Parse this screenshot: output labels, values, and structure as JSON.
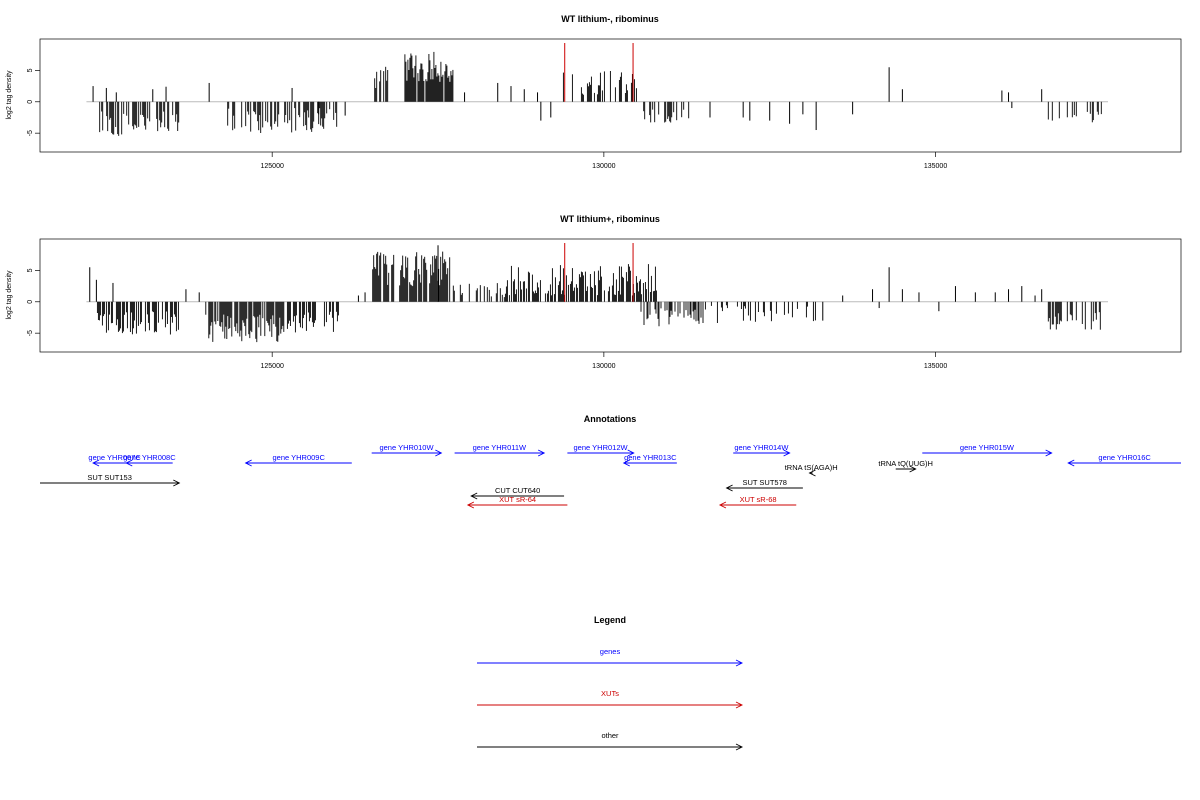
{
  "chart_data": [
    {
      "type": "bar",
      "title": "WT lithium-, ribominus",
      "ylabel": "log2 tag density",
      "xlim": [
        121500,
        138700
      ],
      "ylim": [
        -8,
        10
      ],
      "x_ticks": [
        125000,
        130000,
        135000
      ],
      "x_tick_labels": [
        "125000",
        "130000",
        "135000"
      ],
      "y_ticks": [
        -5,
        0,
        5
      ],
      "y_tick_labels": [
        "-5",
        "0",
        "5"
      ],
      "marker_color": "#cc0000",
      "markers": [
        129410,
        130440
      ],
      "segments": [
        {
          "from": 122400,
          "to": 123600,
          "sign": -1,
          "lo": 1.5,
          "hi": 5.5,
          "density": 0.45
        },
        {
          "from": 124300,
          "to": 126000,
          "sign": -1,
          "lo": 1.0,
          "hi": 5.0,
          "density": 0.5
        },
        {
          "from": 126500,
          "to": 126750,
          "sign": 1,
          "lo": 2.0,
          "hi": 6.0,
          "density": 0.55
        },
        {
          "from": 127000,
          "to": 127750,
          "sign": 1,
          "lo": 3.0,
          "hi": 8.0,
          "density": 0.95
        },
        {
          "from": 129300,
          "to": 130500,
          "sign": 1,
          "lo": 1.0,
          "hi": 5.0,
          "density": 0.35
        },
        {
          "from": 130600,
          "to": 131400,
          "sign": -1,
          "lo": 1.0,
          "hi": 3.5,
          "density": 0.4
        },
        {
          "from": 136700,
          "to": 137500,
          "sign": -1,
          "lo": 1.0,
          "hi": 3.5,
          "density": 0.25
        }
      ],
      "bars": [
        {
          "x": 122300,
          "y": 2.5
        },
        {
          "x": 122500,
          "y": 2.2
        },
        {
          "x": 122650,
          "y": 1.5
        },
        {
          "x": 123200,
          "y": 2.0
        },
        {
          "x": 123400,
          "y": 2.4
        },
        {
          "x": 124050,
          "y": 3.0
        },
        {
          "x": 125300,
          "y": 2.2
        },
        {
          "x": 125700,
          "y": -2.0
        },
        {
          "x": 126100,
          "y": -2.2
        },
        {
          "x": 127900,
          "y": 1.5
        },
        {
          "x": 128400,
          "y": 3.0
        },
        {
          "x": 128600,
          "y": 2.5
        },
        {
          "x": 128800,
          "y": 2.0
        },
        {
          "x": 129000,
          "y": 1.5
        },
        {
          "x": 129050,
          "y": -3.0
        },
        {
          "x": 129200,
          "y": -2.5
        },
        {
          "x": 131600,
          "y": -2.5
        },
        {
          "x": 132100,
          "y": -2.5
        },
        {
          "x": 132200,
          "y": -3.0
        },
        {
          "x": 132500,
          "y": -3.0
        },
        {
          "x": 132800,
          "y": -3.5
        },
        {
          "x": 133000,
          "y": -2.0
        },
        {
          "x": 133200,
          "y": -4.5
        },
        {
          "x": 133750,
          "y": -2.0
        },
        {
          "x": 134300,
          "y": 5.5
        },
        {
          "x": 134500,
          "y": 2.0
        },
        {
          "x": 136000,
          "y": 1.8
        },
        {
          "x": 136100,
          "y": 1.5
        },
        {
          "x": 136150,
          "y": -1.0
        },
        {
          "x": 136600,
          "y": 2.0
        }
      ]
    },
    {
      "type": "bar",
      "title": "WT lithium+, ribominus",
      "ylabel": "log2 tag density",
      "xlim": [
        121500,
        138700
      ],
      "ylim": [
        -8,
        10
      ],
      "x_ticks": [
        125000,
        130000,
        135000
      ],
      "x_tick_labels": [
        "125000",
        "130000",
        "135000"
      ],
      "y_ticks": [
        -5,
        0,
        5
      ],
      "y_tick_labels": [
        "-5",
        "0",
        "5"
      ],
      "marker_color": "#cc0000",
      "markers": [
        129410,
        130440
      ],
      "segments": [
        {
          "from": 122350,
          "to": 123600,
          "sign": -1,
          "lo": 1.5,
          "hi": 5.5,
          "density": 0.6
        },
        {
          "from": 124000,
          "to": 125200,
          "sign": -1,
          "lo": 2.0,
          "hi": 6.5,
          "density": 0.8
        },
        {
          "from": 125200,
          "to": 126000,
          "sign": -1,
          "lo": 1.5,
          "hi": 5.0,
          "density": 0.5
        },
        {
          "from": 126500,
          "to": 127700,
          "sign": 1,
          "lo": 2.5,
          "hi": 8.0,
          "density": 0.85
        },
        {
          "from": 127700,
          "to": 128500,
          "sign": 1,
          "lo": 0.5,
          "hi": 3.0,
          "density": 0.3
        },
        {
          "from": 128500,
          "to": 130800,
          "sign": 1,
          "lo": 1.0,
          "hi": 6.0,
          "density": 0.7
        },
        {
          "from": 130500,
          "to": 131500,
          "sign": -1,
          "lo": 1.0,
          "hi": 4.0,
          "density": 0.55
        },
        {
          "from": 131500,
          "to": 133200,
          "sign": -1,
          "lo": 0.5,
          "hi": 3.5,
          "density": 0.3
        },
        {
          "from": 136700,
          "to": 137500,
          "sign": -1,
          "lo": 1.5,
          "hi": 4.5,
          "density": 0.6
        }
      ],
      "bars": [
        {
          "x": 122250,
          "y": 5.5
        },
        {
          "x": 122350,
          "y": 3.5
        },
        {
          "x": 122600,
          "y": 3.0
        },
        {
          "x": 123700,
          "y": 2.0
        },
        {
          "x": 123900,
          "y": 1.5
        },
        {
          "x": 126300,
          "y": 1.0
        },
        {
          "x": 126400,
          "y": 1.5
        },
        {
          "x": 127500,
          "y": 9.0
        },
        {
          "x": 133300,
          "y": -3.0
        },
        {
          "x": 133600,
          "y": 1.0
        },
        {
          "x": 134050,
          "y": 2.0
        },
        {
          "x": 134300,
          "y": 5.5
        },
        {
          "x": 134500,
          "y": 2.0
        },
        {
          "x": 134750,
          "y": 1.5
        },
        {
          "x": 135300,
          "y": 2.5
        },
        {
          "x": 135600,
          "y": 1.5
        },
        {
          "x": 135900,
          "y": 1.5
        },
        {
          "x": 136100,
          "y": 2.0
        },
        {
          "x": 136300,
          "y": 2.5
        },
        {
          "x": 136500,
          "y": 1.0
        },
        {
          "x": 136600,
          "y": 2.0
        },
        {
          "x": 134150,
          "y": -1.0
        },
        {
          "x": 135050,
          "y": -1.5
        }
      ]
    }
  ],
  "annotations": {
    "title": "Annotations",
    "xlim": [
      121500,
      138700
    ],
    "items": [
      {
        "label": "gene YHR007C",
        "from": 122950,
        "to": 122300,
        "row": 0,
        "color": "#0000ff"
      },
      {
        "label": "gene YHR008C",
        "from": 123500,
        "to": 122800,
        "row": 0,
        "color": "#0000ff"
      },
      {
        "label": "gene YHR009C",
        "from": 126200,
        "to": 124600,
        "row": 0,
        "color": "#0000ff"
      },
      {
        "label": "gene YHR010W",
        "from": 126500,
        "to": 127550,
        "row": -1,
        "color": "#0000ff"
      },
      {
        "label": "gene YHR011W",
        "from": 127750,
        "to": 129100,
        "row": -1,
        "color": "#0000ff"
      },
      {
        "label": "gene YHR012W",
        "from": 129450,
        "to": 130450,
        "row": -1,
        "color": "#0000ff"
      },
      {
        "label": "gene YHR013C",
        "from": 131100,
        "to": 130300,
        "row": 0,
        "color": "#0000ff"
      },
      {
        "label": "gene YHR014W",
        "from": 131950,
        "to": 132800,
        "row": -1,
        "color": "#0000ff"
      },
      {
        "label": "gene YHR015W",
        "from": 134800,
        "to": 136750,
        "row": -1,
        "color": "#0000ff"
      },
      {
        "label": "gene YHR016C",
        "from": 138700,
        "to": 137000,
        "row": 0,
        "color": "#0000ff"
      },
      {
        "label": "tRNA tS(AGA)H",
        "from": 133150,
        "to": 133100,
        "row": 1,
        "color": "#000000"
      },
      {
        "label": "tRNA tQ(UUG)H",
        "from": 134400,
        "to": 134700,
        "row": 0.6,
        "color": "#000000"
      },
      {
        "label": "SUT SUT153",
        "from": 121500,
        "to": 123600,
        "row": 2,
        "color": "#000000"
      },
      {
        "label": "SUT SUT578",
        "from": 133000,
        "to": 131850,
        "row": 2.5,
        "color": "#000000"
      },
      {
        "label": "CUT CUT640",
        "from": 129400,
        "to": 128000,
        "row": 3.3,
        "color": "#000000"
      },
      {
        "label": "XUT sR-64",
        "from": 129450,
        "to": 127950,
        "row": 4.2,
        "color": "#cc0000"
      },
      {
        "label": "XUT sR-68",
        "from": 132900,
        "to": 131750,
        "row": 4.2,
        "color": "#cc0000"
      }
    ]
  },
  "legend": {
    "title": "Legend",
    "entries": [
      {
        "label": "genes",
        "color": "#0000ff"
      },
      {
        "label": "XUTs",
        "color": "#cc0000"
      },
      {
        "label": "other",
        "color": "#000000"
      }
    ]
  }
}
